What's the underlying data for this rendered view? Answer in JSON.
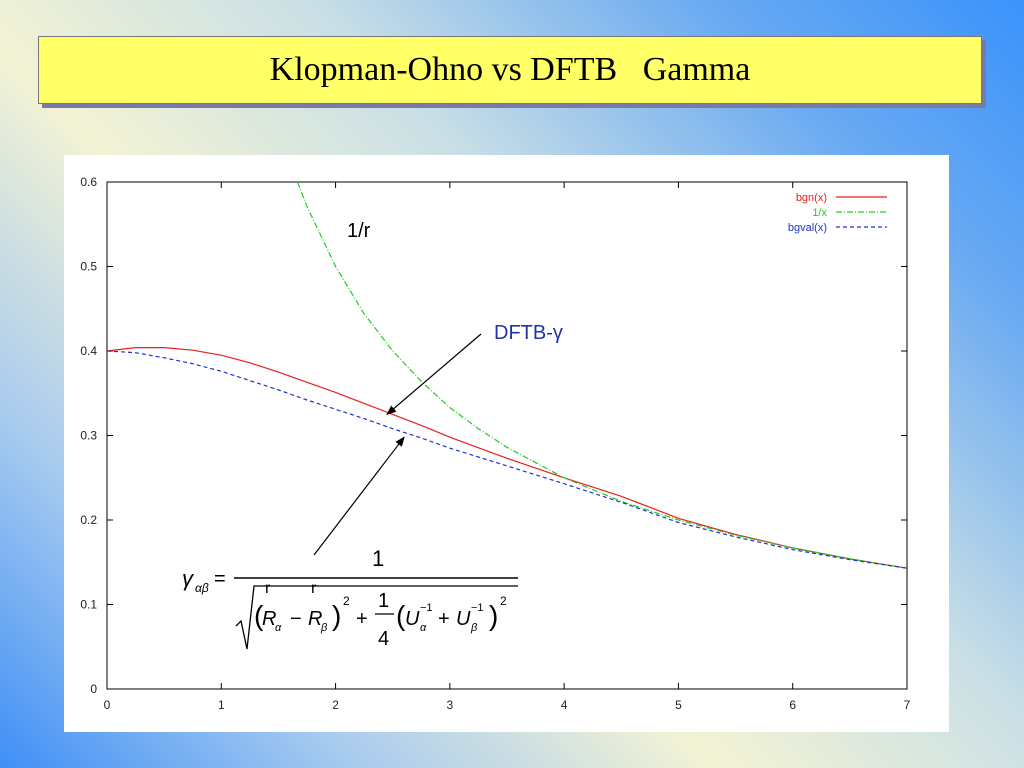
{
  "slide": {
    "title": "Klopman-Ohno vs DFTB   Gamma"
  },
  "chart_data": {
    "type": "line",
    "title": "",
    "xlabel": "",
    "ylabel": "",
    "xlim": [
      0,
      7
    ],
    "ylim": [
      0,
      0.6
    ],
    "x_ticks": [
      0,
      1,
      2,
      3,
      4,
      5,
      6,
      7
    ],
    "y_ticks": [
      0,
      0.1,
      0.2,
      0.3,
      0.4,
      0.5,
      0.6
    ],
    "x_tick_labels": [
      "0",
      "1",
      "2",
      "3",
      "4",
      "5",
      "6",
      "7"
    ],
    "y_tick_labels": [
      "0",
      "0.1",
      "0.2",
      "0.3",
      "0.4",
      "0.5",
      "0.6"
    ],
    "grid": false,
    "legend_position": "top-right",
    "series": [
      {
        "name": "bgn(x)",
        "color": "#e8201c",
        "style": "solid",
        "x": [
          0,
          0.25,
          0.5,
          0.75,
          1,
          1.25,
          1.5,
          1.75,
          2,
          2.25,
          2.5,
          2.75,
          3,
          3.5,
          4,
          4.5,
          5,
          5.5,
          6,
          6.5,
          7
        ],
        "y": [
          0.4,
          0.404,
          0.404,
          0.401,
          0.395,
          0.386,
          0.375,
          0.363,
          0.351,
          0.338,
          0.325,
          0.312,
          0.298,
          0.273,
          0.25,
          0.228,
          0.202,
          0.183,
          0.167,
          0.154,
          0.143
        ]
      },
      {
        "name": "1/x",
        "color": "#22cc22",
        "style": "dash-dot",
        "x": [
          1.667,
          1.75,
          2,
          2.25,
          2.5,
          2.75,
          3,
          3.25,
          3.5,
          4,
          4.5,
          5,
          5.5,
          6,
          6.5,
          7
        ],
        "y": [
          0.6,
          0.571,
          0.5,
          0.444,
          0.4,
          0.364,
          0.333,
          0.308,
          0.286,
          0.25,
          0.222,
          0.2,
          0.182,
          0.167,
          0.154,
          0.143
        ]
      },
      {
        "name": "bgval(x)",
        "color": "#2233cc",
        "style": "dashed",
        "x": [
          0,
          0.25,
          0.5,
          0.75,
          1,
          1.25,
          1.5,
          1.75,
          2,
          2.25,
          2.5,
          2.75,
          3,
          3.5,
          4,
          4.5,
          5,
          5.5,
          6,
          6.5,
          7
        ],
        "y": [
          0.4,
          0.398,
          0.392,
          0.385,
          0.376,
          0.365,
          0.354,
          0.342,
          0.331,
          0.32,
          0.308,
          0.297,
          0.285,
          0.264,
          0.243,
          0.221,
          0.197,
          0.18,
          0.165,
          0.153,
          0.143
        ]
      }
    ],
    "annotations": [
      {
        "text": "1/r",
        "x": 2.1,
        "y": 0.535
      },
      {
        "text": "DFTB-γ",
        "color": "#2233aa"
      }
    ]
  }
}
